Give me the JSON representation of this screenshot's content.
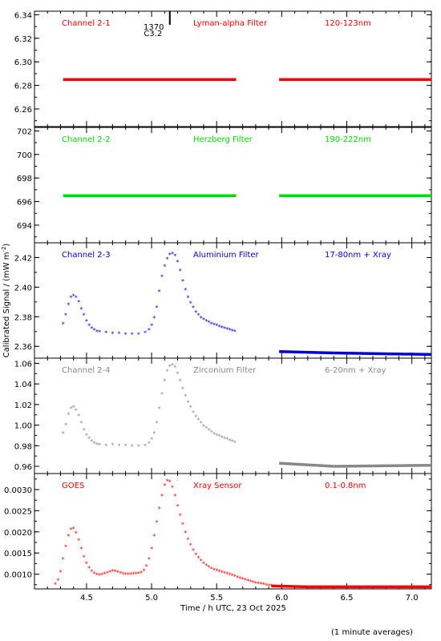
{
  "figure": {
    "xlabel": "Time / h UTC, 23 Oct 2025",
    "ylabel": "Calibrated Signal / (mW m",
    "ylabel_sup": "-2",
    "ylabel_close": ")",
    "footnote": "(1 minute averages)",
    "flare_marker": {
      "time": 5.14,
      "line1": "1370",
      "line2": "C3.2"
    }
  },
  "chart_data": [
    {
      "type": "scatter",
      "panel": "Channel 2-1",
      "labels": [
        "Channel 2-1",
        "Lyman-alpha Filter",
        "120-123nm"
      ],
      "color": "#ff0000",
      "xlim": [
        4.1,
        7.15
      ],
      "ylim": [
        6.245,
        6.343
      ],
      "yticks": [
        "6.26",
        "6.28",
        "6.30",
        "6.32",
        "6.34"
      ],
      "segments": [
        {
          "x": [
            4.32,
            5.65
          ],
          "y": [
            6.285,
            6.285
          ]
        },
        {
          "x": [
            5.98,
            7.15
          ],
          "y": [
            6.285,
            6.285
          ]
        }
      ]
    },
    {
      "type": "scatter",
      "panel": "Channel 2-2",
      "labels": [
        "Channel 2-2",
        "Herzberg Filter",
        "190-222nm"
      ],
      "color": "#00dd00",
      "xlim": [
        4.1,
        7.15
      ],
      "ylim": [
        692.5,
        702.3
      ],
      "yticks": [
        "694",
        "696",
        "698",
        "700",
        "702"
      ],
      "segments": [
        {
          "x": [
            4.32,
            5.65
          ],
          "y": [
            696.5,
            696.5
          ]
        },
        {
          "x": [
            5.98,
            7.15
          ],
          "y": [
            696.5,
            696.5
          ]
        }
      ]
    },
    {
      "type": "scatter",
      "panel": "Channel 2-3",
      "labels": [
        "Channel 2-3",
        "Aluminium Filter",
        "17-80nm + Xray"
      ],
      "color": "#0000dd",
      "xlim": [
        4.1,
        7.15
      ],
      "ylim": [
        2.352,
        2.43
      ],
      "yticks": [
        "2.36",
        "2.38",
        "2.40",
        "2.42"
      ],
      "points": [
        [
          4.32,
          2.375
        ],
        [
          4.34,
          2.381
        ],
        [
          4.36,
          2.388
        ],
        [
          4.38,
          2.393
        ],
        [
          4.4,
          2.394
        ],
        [
          4.42,
          2.393
        ],
        [
          4.44,
          2.39
        ],
        [
          4.46,
          2.385
        ],
        [
          4.48,
          2.381
        ],
        [
          4.5,
          2.377
        ],
        [
          4.52,
          2.374
        ],
        [
          4.54,
          2.372
        ],
        [
          4.56,
          2.371
        ],
        [
          4.58,
          2.37
        ],
        [
          4.6,
          2.3695
        ],
        [
          4.65,
          2.369
        ],
        [
          4.7,
          2.3685
        ],
        [
          4.75,
          2.3685
        ],
        [
          4.8,
          2.368
        ],
        [
          4.85,
          2.368
        ],
        [
          4.9,
          2.368
        ],
        [
          4.95,
          2.369
        ],
        [
          4.98,
          2.371
        ],
        [
          5.0,
          2.374
        ],
        [
          5.02,
          2.379
        ],
        [
          5.04,
          2.386
        ],
        [
          5.06,
          2.397
        ],
        [
          5.08,
          2.407
        ],
        [
          5.1,
          2.414
        ],
        [
          5.12,
          2.419
        ],
        [
          5.14,
          2.422
        ],
        [
          5.16,
          2.4225
        ],
        [
          5.18,
          2.421
        ],
        [
          5.2,
          2.417
        ],
        [
          5.22,
          2.411
        ],
        [
          5.24,
          2.404
        ],
        [
          5.26,
          2.398
        ],
        [
          5.28,
          2.393
        ],
        [
          5.3,
          2.389
        ],
        [
          5.32,
          2.386
        ],
        [
          5.34,
          2.383
        ],
        [
          5.36,
          2.381
        ],
        [
          5.38,
          2.379
        ],
        [
          5.4,
          2.378
        ],
        [
          5.42,
          2.377
        ],
        [
          5.44,
          2.376
        ],
        [
          5.46,
          2.375
        ],
        [
          5.48,
          2.3745
        ],
        [
          5.5,
          2.374
        ],
        [
          5.52,
          2.373
        ],
        [
          5.54,
          2.3725
        ],
        [
          5.56,
          2.372
        ],
        [
          5.58,
          2.3715
        ],
        [
          5.6,
          2.371
        ],
        [
          5.62,
          2.3705
        ],
        [
          5.64,
          2.37
        ]
      ],
      "segments": [
        {
          "x": [
            5.98,
            6.4
          ],
          "y": [
            2.3565,
            2.3555
          ]
        },
        {
          "x": [
            6.4,
            7.15
          ],
          "y": [
            2.3555,
            2.3545
          ]
        }
      ]
    },
    {
      "type": "scatter",
      "panel": "Channel 2-4",
      "labels": [
        "Channel 2-4",
        "Zirconium Filter",
        "6-20nm + Xray"
      ],
      "color": "#888888",
      "xlim": [
        4.1,
        7.15
      ],
      "ylim": [
        0.953,
        1.065
      ],
      "yticks": [
        "0.96",
        "0.98",
        "1.00",
        "1.02",
        "1.04",
        "1.06"
      ],
      "points": [
        [
          4.32,
          0.992
        ],
        [
          4.34,
          1.0
        ],
        [
          4.36,
          1.01
        ],
        [
          4.38,
          1.016
        ],
        [
          4.4,
          1.017
        ],
        [
          4.42,
          1.014
        ],
        [
          4.44,
          1.009
        ],
        [
          4.46,
          1.002
        ],
        [
          4.48,
          0.995
        ],
        [
          4.5,
          0.99
        ],
        [
          4.52,
          0.987
        ],
        [
          4.54,
          0.984
        ],
        [
          4.56,
          0.982
        ],
        [
          4.58,
          0.981
        ],
        [
          4.6,
          0.9805
        ],
        [
          4.65,
          0.98
        ],
        [
          4.7,
          0.9805
        ],
        [
          4.75,
          0.98
        ],
        [
          4.8,
          0.98
        ],
        [
          4.85,
          0.9795
        ],
        [
          4.9,
          0.9795
        ],
        [
          4.95,
          0.98
        ],
        [
          4.98,
          0.982
        ],
        [
          5.0,
          0.986
        ],
        [
          5.02,
          0.992
        ],
        [
          5.04,
          1.002
        ],
        [
          5.06,
          1.016
        ],
        [
          5.08,
          1.03
        ],
        [
          5.1,
          1.043
        ],
        [
          5.12,
          1.052
        ],
        [
          5.14,
          1.057
        ],
        [
          5.16,
          1.058
        ],
        [
          5.18,
          1.056
        ],
        [
          5.2,
          1.05
        ],
        [
          5.22,
          1.043
        ],
        [
          5.24,
          1.035
        ],
        [
          5.26,
          1.028
        ],
        [
          5.28,
          1.022
        ],
        [
          5.3,
          1.017
        ],
        [
          5.32,
          1.012
        ],
        [
          5.34,
          1.008
        ],
        [
          5.36,
          1.005
        ],
        [
          5.38,
          1.002
        ],
        [
          5.4,
          0.999
        ],
        [
          5.42,
          0.997
        ],
        [
          5.44,
          0.995
        ],
        [
          5.46,
          0.993
        ],
        [
          5.48,
          0.991
        ],
        [
          5.5,
          0.99
        ],
        [
          5.52,
          0.989
        ],
        [
          5.54,
          0.988
        ],
        [
          5.56,
          0.987
        ],
        [
          5.58,
          0.986
        ],
        [
          5.6,
          0.985
        ],
        [
          5.62,
          0.984
        ],
        [
          5.64,
          0.983
        ]
      ],
      "segments": [
        {
          "x": [
            5.98,
            6.4
          ],
          "y": [
            0.963,
            0.96
          ]
        },
        {
          "x": [
            6.4,
            7.15
          ],
          "y": [
            0.96,
            0.961
          ]
        }
      ]
    },
    {
      "type": "scatter",
      "panel": "GOES",
      "labels": [
        "GOES",
        "Xray Sensor",
        "0.1-0.8nm"
      ],
      "color": "#ff0000",
      "xlim": [
        4.1,
        7.15
      ],
      "ylim": [
        0.00065,
        0.00338
      ],
      "yticks": [
        "0.0010",
        "0.0015",
        "0.0020",
        "0.0025",
        "0.0030"
      ],
      "points": [
        [
          4.26,
          0.00075
        ],
        [
          4.28,
          0.00085
        ],
        [
          4.3,
          0.00105
        ],
        [
          4.32,
          0.00135
        ],
        [
          4.34,
          0.00165
        ],
        [
          4.36,
          0.0019
        ],
        [
          4.38,
          0.00205
        ],
        [
          4.4,
          0.00207
        ],
        [
          4.42,
          0.00197
        ],
        [
          4.44,
          0.0018
        ],
        [
          4.46,
          0.0016
        ],
        [
          4.48,
          0.0014
        ],
        [
          4.5,
          0.00125
        ],
        [
          4.52,
          0.00114
        ],
        [
          4.54,
          0.00106
        ],
        [
          4.56,
          0.00101
        ],
        [
          4.58,
          0.00098
        ],
        [
          4.6,
          0.00097
        ],
        [
          4.62,
          0.00098
        ],
        [
          4.64,
          0.001
        ],
        [
          4.66,
          0.00102
        ],
        [
          4.68,
          0.00105
        ],
        [
          4.7,
          0.00107
        ],
        [
          4.72,
          0.00106
        ],
        [
          4.74,
          0.00104
        ],
        [
          4.76,
          0.00102
        ],
        [
          4.78,
          0.001
        ],
        [
          4.8,
          0.00099
        ],
        [
          4.82,
          0.00099
        ],
        [
          4.84,
          0.00099
        ],
        [
          4.86,
          0.001
        ],
        [
          4.88,
          0.001
        ],
        [
          4.9,
          0.00101
        ],
        [
          4.92,
          0.00103
        ],
        [
          4.94,
          0.00108
        ],
        [
          4.96,
          0.00118
        ],
        [
          4.98,
          0.00135
        ],
        [
          5.0,
          0.0016
        ],
        [
          5.02,
          0.0019
        ],
        [
          5.04,
          0.00222
        ],
        [
          5.06,
          0.00255
        ],
        [
          5.08,
          0.00285
        ],
        [
          5.1,
          0.0031
        ],
        [
          5.12,
          0.0032
        ],
        [
          5.14,
          0.00318
        ],
        [
          5.16,
          0.00305
        ],
        [
          5.18,
          0.00285
        ],
        [
          5.2,
          0.0026
        ],
        [
          5.22,
          0.00238
        ],
        [
          5.24,
          0.00218
        ],
        [
          5.26,
          0.00198
        ],
        [
          5.28,
          0.00182
        ],
        [
          5.3,
          0.00168
        ],
        [
          5.32,
          0.00156
        ],
        [
          5.34,
          0.00146
        ],
        [
          5.36,
          0.00138
        ],
        [
          5.38,
          0.00131
        ],
        [
          5.4,
          0.00125
        ],
        [
          5.42,
          0.0012
        ],
        [
          5.44,
          0.00116
        ],
        [
          5.46,
          0.00112
        ],
        [
          5.48,
          0.0011
        ],
        [
          5.5,
          0.00108
        ],
        [
          5.52,
          0.00106
        ],
        [
          5.54,
          0.00104
        ],
        [
          5.56,
          0.00102
        ],
        [
          5.58,
          0.001
        ],
        [
          5.6,
          0.00098
        ],
        [
          5.62,
          0.00096
        ],
        [
          5.64,
          0.00094
        ],
        [
          5.66,
          0.00092
        ],
        [
          5.68,
          0.0009
        ],
        [
          5.7,
          0.00088
        ],
        [
          5.72,
          0.00086
        ],
        [
          5.74,
          0.00084
        ],
        [
          5.76,
          0.00082
        ],
        [
          5.78,
          0.0008
        ],
        [
          5.8,
          0.00078
        ],
        [
          5.82,
          0.00077
        ],
        [
          5.84,
          0.00076
        ],
        [
          5.86,
          0.00075
        ],
        [
          5.88,
          0.00074
        ],
        [
          5.9,
          0.00073
        ],
        [
          5.92,
          0.00072
        ]
      ],
      "segments": [
        {
          "x": [
            5.92,
            6.2
          ],
          "y": [
            0.00072,
            0.0007
          ]
        },
        {
          "x": [
            6.2,
            7.15
          ],
          "y": [
            0.0007,
            0.0007
          ]
        }
      ]
    }
  ],
  "xaxis": {
    "xlim": [
      4.1,
      7.15
    ],
    "ticks": [
      "4.5",
      "5.0",
      "5.5",
      "6.0",
      "6.5",
      "7.0"
    ]
  }
}
